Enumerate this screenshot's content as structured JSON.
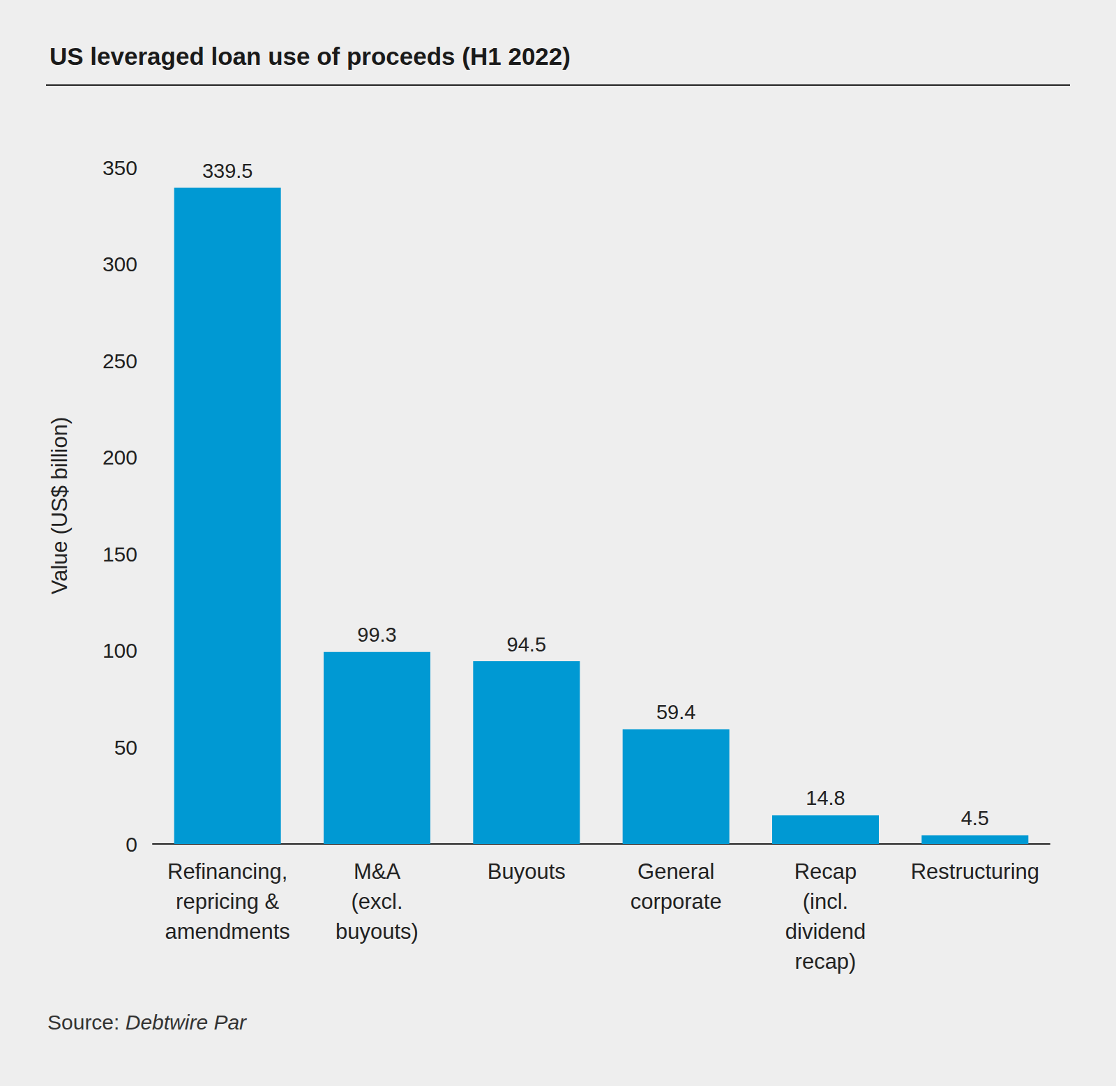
{
  "chart_data": {
    "type": "bar",
    "title": "US leveraged loan use of proceeds (H1 2022)",
    "y_label": "Value (US$ billion)",
    "categories": [
      "Refinancing,\nrepricing &\namendments",
      "M&A\n(excl.\nbuyouts)",
      "Buyouts",
      "General\ncorporate",
      "Recap\n(incl.\ndividend\nrecap)",
      "Restructuring"
    ],
    "values": [
      339.5,
      99.3,
      94.5,
      59.4,
      14.8,
      4.5
    ],
    "color": "#0099d3",
    "ylim": [
      0,
      350
    ],
    "yticks": [
      0,
      50,
      100,
      150,
      200,
      250,
      300,
      350
    ],
    "grid": false,
    "data_labels": true,
    "source": "Source: Debtwire Par"
  }
}
